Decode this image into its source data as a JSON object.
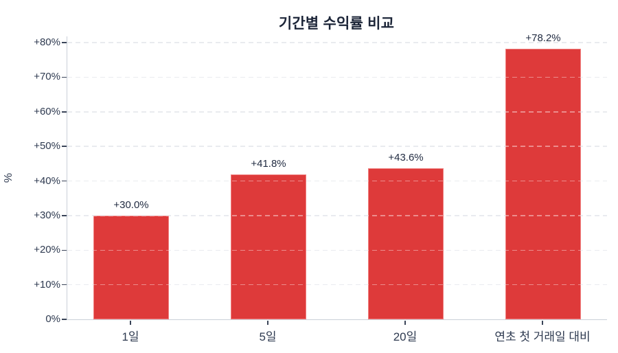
{
  "chart_data": {
    "type": "bar",
    "title": "기간별 수익률 비교",
    "xlabel": "",
    "ylabel": "%",
    "categories": [
      "1일",
      "5일",
      "20일",
      "연초 첫 거래일 대비"
    ],
    "values": [
      30.0,
      41.8,
      43.6,
      78.2
    ],
    "bar_labels": [
      "+30.0%",
      "+41.8%",
      "+43.6%",
      "+78.2%"
    ],
    "y_tick_values": [
      0,
      10,
      20,
      30,
      40,
      50,
      60,
      70,
      80
    ],
    "y_tick_labels": [
      "0%",
      "+10%",
      "+20%",
      "+30%",
      "+40%",
      "+50%",
      "+60%",
      "+70%",
      "+80%"
    ],
    "ylim": [
      0,
      81.8
    ],
    "grid": "horizontal dashed",
    "legend": "none",
    "colors": {
      "bar": "#de3a3a",
      "bar_edge": "#f2b4b4",
      "title_text": "#1c2538",
      "tick_text": "#2e3a50",
      "value_text": "#222c42",
      "grid_line": "#d9dde3",
      "axis_spine": "#c9cfd8",
      "tick_mark": "#3a4458",
      "background": "#ffffff"
    }
  }
}
